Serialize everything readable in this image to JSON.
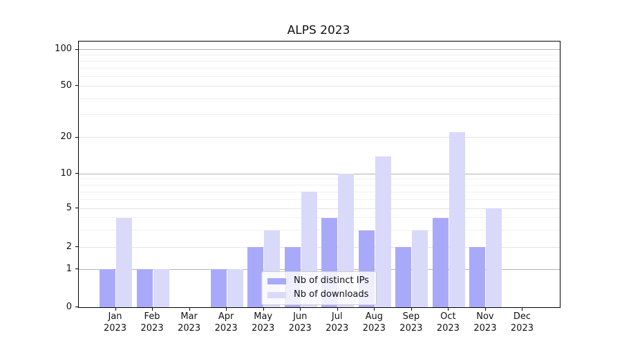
{
  "title": "ALPS 2023",
  "legend": {
    "items": [
      {
        "label": "Nb of distinct IPs",
        "color": "#a9a9fa"
      },
      {
        "label": "Nb of downloads",
        "color": "#d9d9fa"
      }
    ]
  },
  "colors": {
    "bar_distinct_ips": "#a9a9fa",
    "bar_downloads": "#d9d9fa",
    "grid_decade": "#b2b2b2",
    "grid_labeled": "#e4e4e4",
    "grid_minor": "#f1f1f1",
    "spine": "#000000",
    "background": "#ffffff"
  },
  "chart_data": {
    "type": "bar",
    "title": "ALPS 2023",
    "categories": [
      "Jan",
      "Feb",
      "Mar",
      "Apr",
      "May",
      "Jun",
      "Jul",
      "Aug",
      "Sep",
      "Oct",
      "Nov",
      "Dec"
    ],
    "year_label": "2023",
    "series": [
      {
        "name": "Nb of distinct IPs",
        "color": "#a9a9fa",
        "values": [
          1,
          1,
          0,
          1,
          2,
          2,
          4,
          3,
          2,
          4,
          2,
          0
        ]
      },
      {
        "name": "Nb of downloads",
        "color": "#d9d9fa",
        "values": [
          4,
          1,
          0,
          1,
          3,
          7,
          10,
          14,
          3,
          22,
          5,
          0
        ]
      }
    ],
    "xlabel": "",
    "ylabel": "",
    "grid": "on",
    "legend_position": "lower center",
    "y_axis": {
      "scale": "symlog-like (linear 0-1, log above)",
      "tick_labels": [
        "100",
        "50",
        "20",
        "10",
        "5",
        "2",
        "1",
        "0"
      ],
      "tick_values": [
        100,
        50,
        20,
        10,
        5,
        2,
        1,
        0
      ],
      "ylim_bottom": 0,
      "decade_gridlines": [
        1,
        10,
        100
      ],
      "labeled_gridlines": [
        2,
        5,
        20,
        50
      ],
      "minor_gridlines": [
        3,
        4,
        6,
        7,
        8,
        9,
        30,
        40,
        60,
        70,
        80,
        90
      ],
      "anchors": [
        {
          "value": 0,
          "frac": 0.0
        },
        {
          "value": 1,
          "frac": 0.1429
        },
        {
          "value": 2,
          "frac": 0.2256
        },
        {
          "value": 5,
          "frac": 0.3716
        },
        {
          "value": 10,
          "frac": 0.502
        },
        {
          "value": 20,
          "frac": 0.6383
        },
        {
          "value": 50,
          "frac": 0.8323
        },
        {
          "value": 100,
          "frac": 0.9695
        }
      ]
    }
  }
}
